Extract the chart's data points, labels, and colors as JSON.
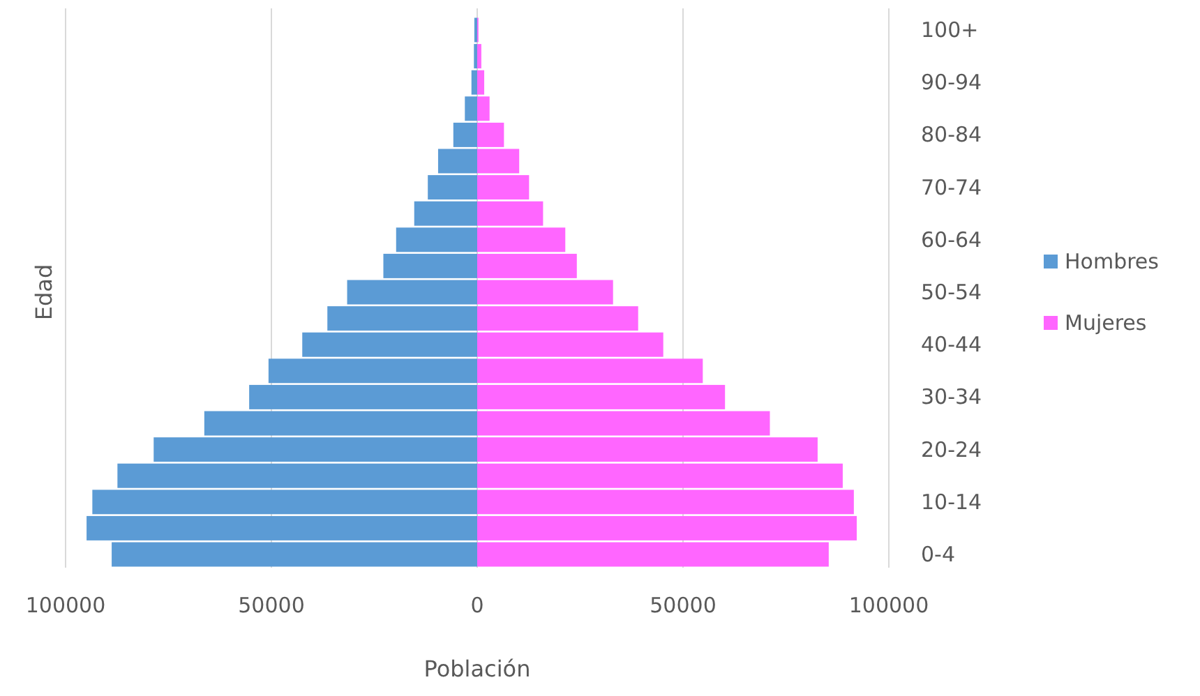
{
  "chart_data": {
    "type": "bar",
    "orientation": "horizontal",
    "xlabel": "Población",
    "ylabel": "Edad",
    "categories": [
      "100+",
      null,
      "90-94",
      null,
      "80-84",
      null,
      "70-74",
      null,
      "60-64",
      null,
      "50-54",
      null,
      "40-44",
      null,
      "30-34",
      null,
      "20-24",
      null,
      "10-14",
      null,
      "0-4"
    ],
    "series": [
      {
        "name": "Hombres",
        "color": "#5b9bd5",
        "values": [
          -700,
          -800,
          -1400,
          -3000,
          -5800,
          -9500,
          -12000,
          -15300,
          -19700,
          -22800,
          -31600,
          -36400,
          -42500,
          -50700,
          -55400,
          -66300,
          -78600,
          -87400,
          -93500,
          -94900,
          -88800
        ]
      },
      {
        "name": "Mujeres",
        "color": "#ff66ff",
        "values": [
          300,
          1000,
          1700,
          3000,
          6500,
          10200,
          12600,
          16000,
          21400,
          24200,
          33000,
          39100,
          45200,
          54800,
          60200,
          71100,
          82700,
          88800,
          91500,
          92200,
          85400
        ]
      }
    ],
    "xlim": [
      -100000,
      100000
    ],
    "xticks": [
      {
        "value": -100000,
        "label": "100000"
      },
      {
        "value": -50000,
        "label": "50000"
      },
      0,
      50000,
      100000
    ],
    "grid": "x",
    "legend": "right",
    "stacked": true
  }
}
